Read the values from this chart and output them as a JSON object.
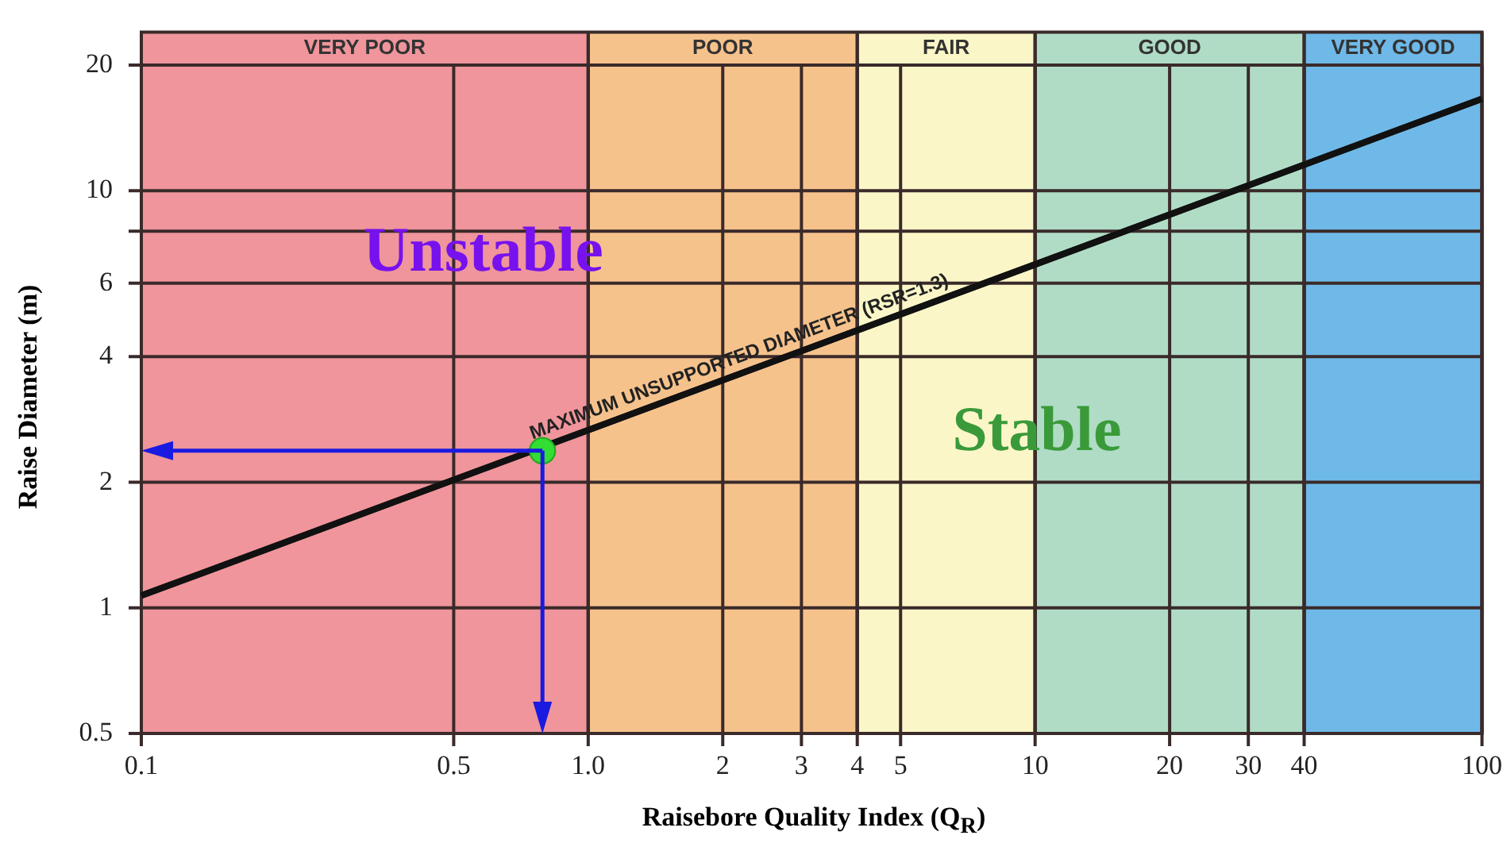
{
  "chart_data": {
    "type": "line",
    "xlabel": "Raisebore Quality Index (Q$_{R}$)",
    "ylabel": "Raise Diameter (m)",
    "log": "xy",
    "xlim": [
      0.1,
      100
    ],
    "ylim": [
      0.5,
      24
    ],
    "xticks": [
      0.1,
      0.5,
      {
        "value": 1,
        "label": "1.0"
      },
      2,
      3,
      4,
      5,
      10,
      20,
      30,
      40,
      100
    ],
    "yticks": [
      0.5,
      1,
      2,
      4,
      6,
      {
        "value": 8,
        "label": null
      },
      10,
      20
    ],
    "grid": true,
    "legend": false,
    "series": [
      {
        "name": "MAXIMUM UNSUPPORTED DIAMETER (RSR=1.3)",
        "color": "#111111",
        "x": [
          0.1,
          100
        ],
        "values": [
          1.07,
          16.6
        ],
        "marker": "none"
      },
      {
        "type": "scatter",
        "color": "#33dd33",
        "x": [
          0.79
        ],
        "values": [
          2.38
        ],
        "marker": "circle"
      }
    ],
    "bands": [
      {
        "axis": "x",
        "from": 0.1,
        "to": 1,
        "label": "VERY POOR",
        "color": "#ef959b"
      },
      {
        "axis": "x",
        "from": 1,
        "to": 4,
        "label": "POOR",
        "color": "#f6c28c"
      },
      {
        "axis": "x",
        "from": 4,
        "to": 10,
        "label": "FAIR",
        "color": "#fbf6c8"
      },
      {
        "axis": "x",
        "from": 10,
        "to": 40,
        "label": "GOOD",
        "color": "#b0dcc6"
      },
      {
        "axis": "x",
        "from": 40,
        "to": 100,
        "label": "VERY GOOD",
        "color": "#6fb9e8"
      }
    ],
    "annotations": [
      "Unstable",
      "Stable"
    ]
  }
}
